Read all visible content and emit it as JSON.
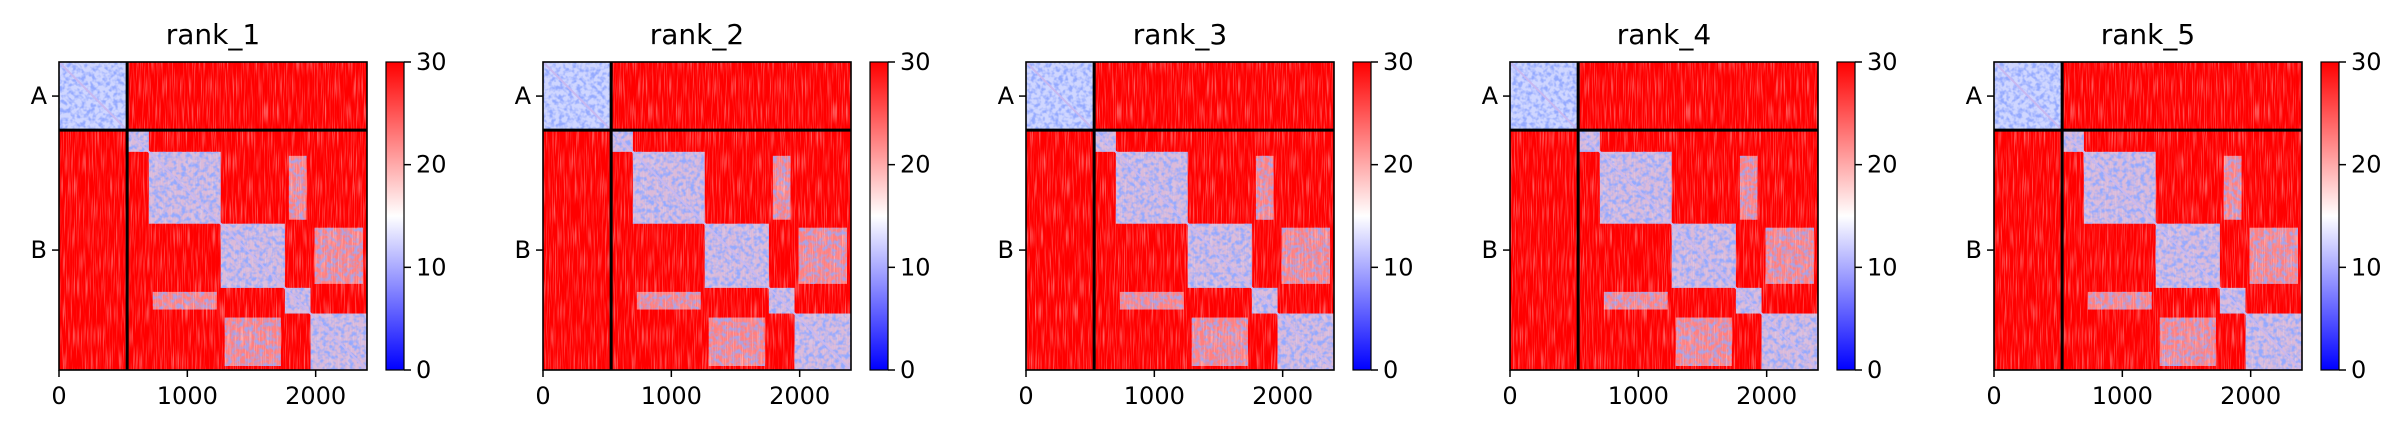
{
  "chart_data": {
    "type": "heatmap",
    "colormap": {
      "low": "#0000ff",
      "mid": "#ffffff",
      "high": "#ff0000"
    },
    "color_range": [
      0,
      30
    ],
    "colorbar_ticks": [
      "0",
      "10",
      "20",
      "30"
    ],
    "xlim": [
      0,
      2400
    ],
    "x_ticks": [
      {
        "value": 0,
        "label": "0"
      },
      {
        "value": 1000,
        "label": "1000"
      },
      {
        "value": 2000,
        "label": "2000"
      }
    ],
    "chains": [
      {
        "label": "A",
        "start": 0,
        "end": 531
      },
      {
        "label": "B",
        "start": 531,
        "end": 2400
      }
    ],
    "chain_boundary": 531,
    "grid": false,
    "panels": [
      {
        "title": "rank_1"
      },
      {
        "title": "rank_2"
      },
      {
        "title": "rank_3"
      },
      {
        "title": "rank_4"
      },
      {
        "title": "rank_5"
      }
    ]
  }
}
